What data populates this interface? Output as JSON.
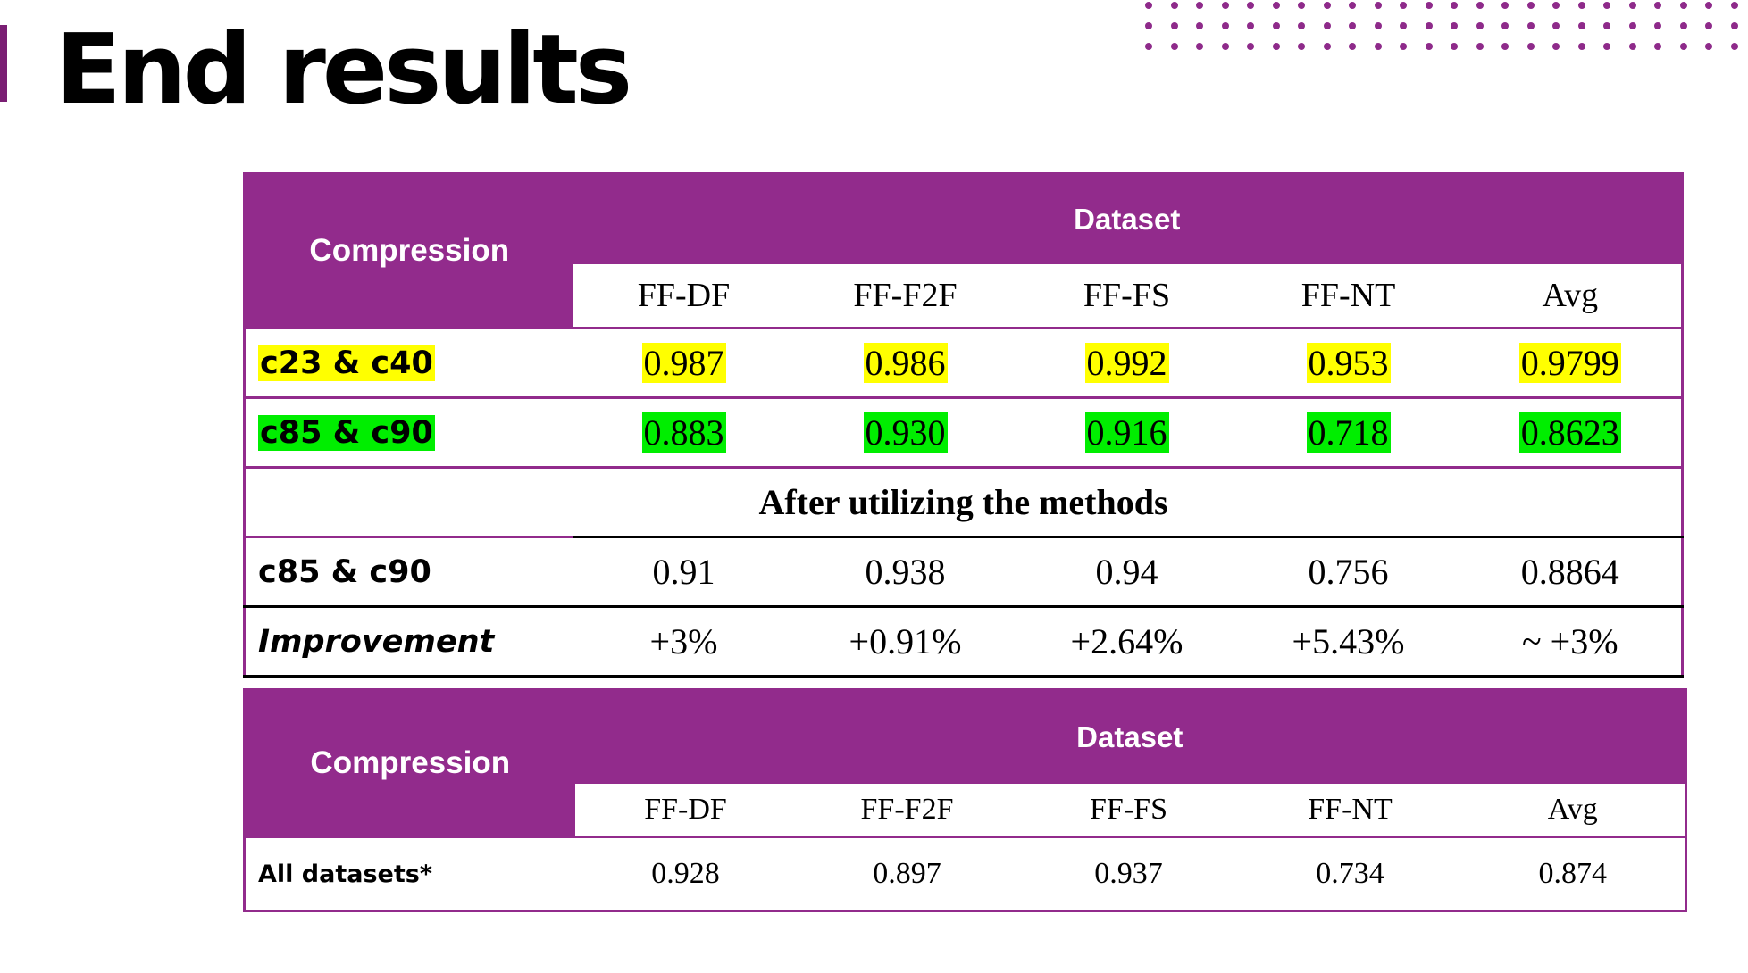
{
  "slide": {
    "title": "End results"
  },
  "table1": {
    "compression_header": "Compression",
    "dataset_header": "Dataset",
    "columns": [
      "FF-DF",
      "FF-F2F",
      "FF-FS",
      "FF-NT",
      "Avg"
    ],
    "rows": [
      {
        "label": "c23 & c40",
        "values": [
          "0.987",
          "0.986",
          "0.992",
          "0.953",
          "0.9799"
        ],
        "highlight": "#ffff00"
      },
      {
        "label": "c85 & c90",
        "values": [
          "0.883",
          "0.930",
          "0.916",
          "0.718",
          "0.8623"
        ],
        "highlight": "#00ee00"
      }
    ],
    "section_label": "After utilizing the methods",
    "after_rows": [
      {
        "label": "c85 & c90",
        "values": [
          "0.91",
          "0.938",
          "0.94",
          "0.756",
          "0.8864"
        ]
      },
      {
        "label": "Improvement",
        "values": [
          "+3%",
          "+0.91%",
          "+2.64%",
          "+5.43%",
          "~ +3%"
        ]
      }
    ]
  },
  "table2": {
    "compression_header": "Compression",
    "dataset_header": "Dataset",
    "columns": [
      "FF-DF",
      "FF-F2F",
      "FF-FS",
      "FF-NT",
      "Avg"
    ],
    "rows": [
      {
        "label": "All datasets*",
        "values": [
          "0.928",
          "0.897",
          "0.937",
          "0.734",
          "0.874"
        ]
      }
    ]
  },
  "colors": {
    "header_purple": "#922b8c",
    "highlight_yellow": "#ffff00",
    "highlight_green": "#00ee00",
    "accent_bar": "#7a1e73"
  }
}
